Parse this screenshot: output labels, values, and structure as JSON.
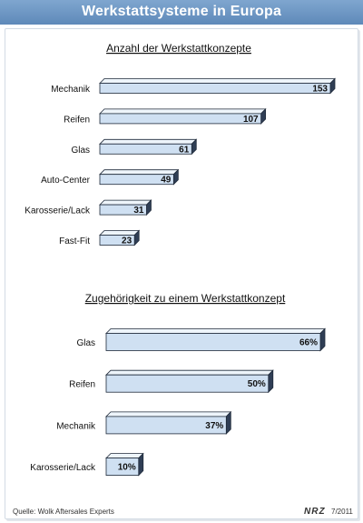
{
  "header": {
    "title": "Werkstattsysteme in Europa"
  },
  "footer": {
    "source": "Quelle: Wolk Aftersales Experts",
    "brand": "NRZ",
    "date": "7/2011"
  },
  "colors": {
    "header": "#6b93c2",
    "bar_face": "#cfe0f2",
    "bar_top": "#eef5fb",
    "bar_side": "#2f3e55",
    "bar_border": "#1f2a3a"
  },
  "chart_data": [
    {
      "type": "bar",
      "orientation": "horizontal",
      "title": "Anzahl der Werkstattkonzepte",
      "categories": [
        "Mechanik",
        "Reifen",
        "Glas",
        "Auto-Center",
        "Karosserie/Lack",
        "Fast-Fit"
      ],
      "values": [
        153,
        107,
        61,
        49,
        31,
        23
      ],
      "value_labels": [
        "153",
        "107",
        "61",
        "49",
        "31",
        "23"
      ],
      "xlim": [
        0,
        153
      ],
      "grid": false,
      "legend": "none"
    },
    {
      "type": "bar",
      "orientation": "horizontal",
      "title": "Zugehörigkeit zu einem Werkstattkonzept",
      "categories": [
        "Glas",
        "Reifen",
        "Mechanik",
        "Karosserie/Lack"
      ],
      "values": [
        66,
        50,
        37,
        10
      ],
      "value_labels": [
        "66%",
        "50%",
        "37%",
        "10%"
      ],
      "unit": "%",
      "xlim": [
        0,
        66
      ],
      "grid": false,
      "legend": "none"
    }
  ]
}
